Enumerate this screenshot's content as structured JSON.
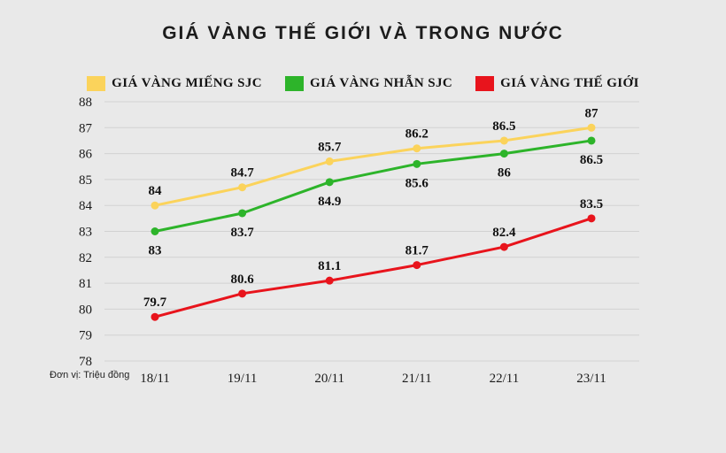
{
  "title": "GIÁ VÀNG THẾ GIỚI VÀ TRONG NƯỚC",
  "unit_note": "Đơn vị: Triệu đồng",
  "colors": {
    "background": "#e9e9e9",
    "gridline": "#d2d2d2",
    "text": "#1a1a1a"
  },
  "chart_data": {
    "type": "line",
    "title": "GIÁ VÀNG THẾ GIỚI VÀ TRONG NƯỚC",
    "categories": [
      "18/11",
      "19/11",
      "20/11",
      "21/11",
      "22/11",
      "23/11"
    ],
    "series": [
      {
        "name": "GIÁ VÀNG MIẾNG SJC",
        "color": "#FBD35B",
        "values": [
          84,
          84.7,
          85.7,
          86.2,
          86.5,
          87
        ],
        "label_position": "above"
      },
      {
        "name": "GIÁ VÀNG NHẪN SJC",
        "color": "#2DB42A",
        "values": [
          83,
          83.7,
          84.9,
          85.6,
          86,
          86.5
        ],
        "label_position": "below"
      },
      {
        "name": "GIÁ VÀNG THẾ GIỚI",
        "color": "#E8141C",
        "values": [
          79.7,
          80.6,
          81.1,
          81.7,
          82.4,
          83.5
        ],
        "label_position": "above"
      }
    ],
    "ylim": [
      78,
      88
    ],
    "ytick_step": 1,
    "xlabel": "",
    "ylabel": "Đơn vị: Triệu đồng",
    "grid": true,
    "legend_position": "top"
  }
}
